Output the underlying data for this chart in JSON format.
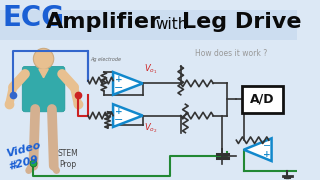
{
  "bg_color": "#dce8f5",
  "title_bar_color": "#ccddf0",
  "title_ecg": "ECG",
  "title_ecg_color": "#1a5fd4",
  "title_amplifier": "Amplifier",
  "title_with": "with",
  "title_leg_drive": "Leg Drive",
  "title_black": "#0a0a0a",
  "subtitle_how": "How does it work ?",
  "subtitle_color": "#999999",
  "video_text": "Video\n#209",
  "video_color": "#1a5fd4",
  "stem_text": "STEM\nProp",
  "stem_color": "#444444",
  "op_color": "#1188cc",
  "ad_box_color": "#111111",
  "wire_blue": "#3366cc",
  "wire_red": "#cc2222",
  "wire_green": "#228833",
  "wire_gray": "#555555",
  "shirt_color": "#33aaaa",
  "skin_color": "#e8c090",
  "leg_color": "#d4b090"
}
